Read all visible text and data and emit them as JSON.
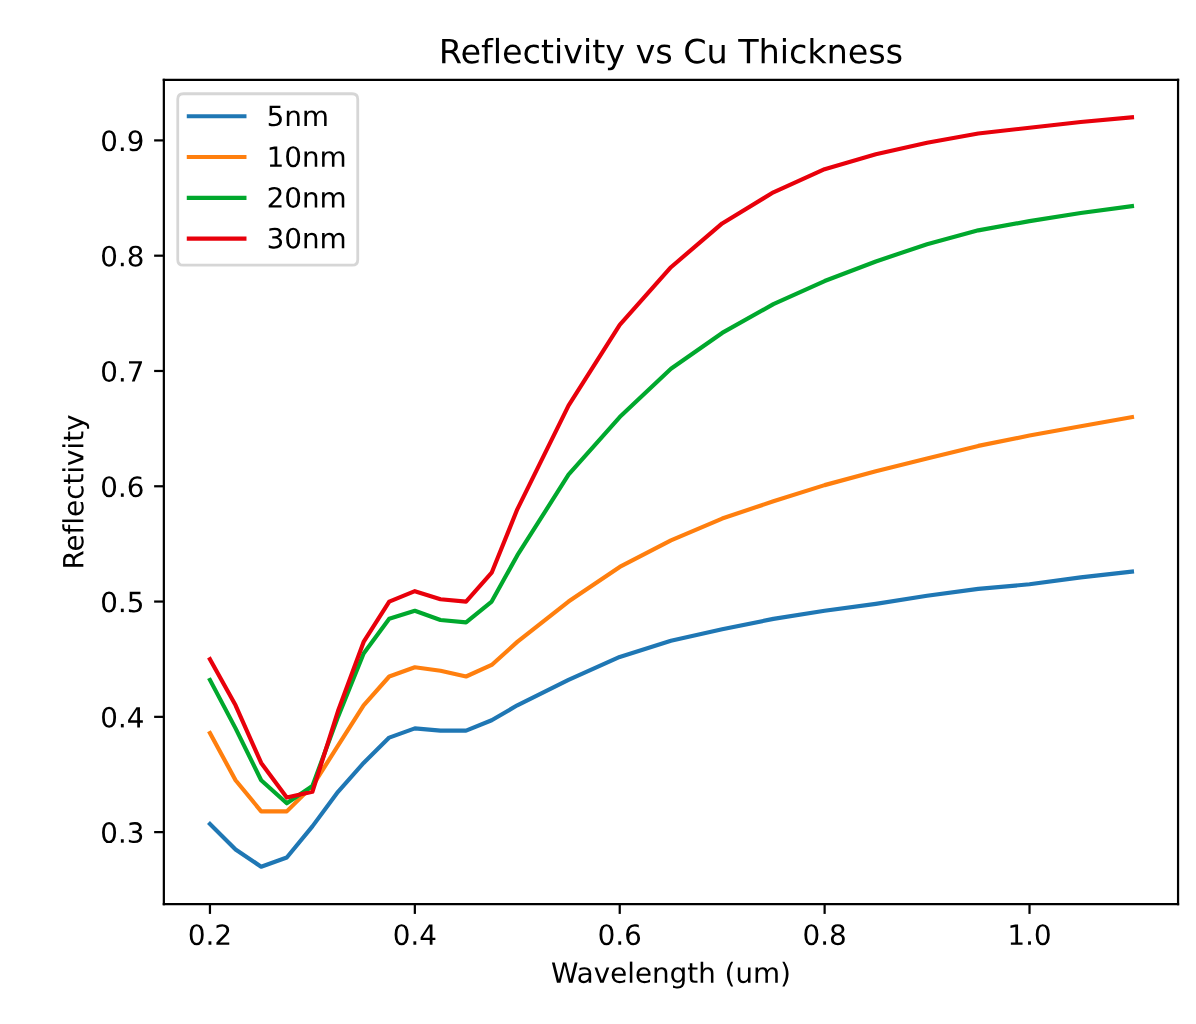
{
  "chart_data": {
    "type": "line",
    "title": "Reflectivity vs Cu Thickness",
    "xlabel": "Wavelength (um)",
    "ylabel": "Reflectivity",
    "x": [
      0.2,
      0.225,
      0.25,
      0.275,
      0.3,
      0.325,
      0.35,
      0.375,
      0.4,
      0.425,
      0.45,
      0.475,
      0.5,
      0.55,
      0.6,
      0.65,
      0.7,
      0.75,
      0.8,
      0.85,
      0.9,
      0.95,
      1.0,
      1.05,
      1.1
    ],
    "series": [
      {
        "name": "5nm",
        "color": "#1f77b4",
        "values": [
          0.307,
          0.285,
          0.27,
          0.278,
          0.305,
          0.335,
          0.36,
          0.382,
          0.39,
          0.388,
          0.388,
          0.397,
          0.41,
          0.432,
          0.452,
          0.466,
          0.476,
          0.485,
          0.492,
          0.498,
          0.505,
          0.511,
          0.515,
          0.521,
          0.526
        ]
      },
      {
        "name": "10nm",
        "color": "#ff7f0e",
        "values": [
          0.386,
          0.345,
          0.318,
          0.318,
          0.34,
          0.375,
          0.41,
          0.435,
          0.443,
          0.44,
          0.435,
          0.445,
          0.465,
          0.5,
          0.53,
          0.553,
          0.572,
          0.587,
          0.601,
          0.613,
          0.624,
          0.635,
          0.644,
          0.652,
          0.66
        ]
      },
      {
        "name": "20nm",
        "color": "#00a82d",
        "values": [
          0.432,
          0.39,
          0.345,
          0.325,
          0.34,
          0.4,
          0.455,
          0.485,
          0.492,
          0.484,
          0.482,
          0.5,
          0.54,
          0.61,
          0.66,
          0.702,
          0.733,
          0.758,
          0.778,
          0.795,
          0.81,
          0.822,
          0.83,
          0.837,
          0.843
        ]
      },
      {
        "name": "30nm",
        "color": "#e8000b",
        "values": [
          0.45,
          0.41,
          0.36,
          0.33,
          0.335,
          0.405,
          0.465,
          0.5,
          0.509,
          0.502,
          0.5,
          0.525,
          0.58,
          0.67,
          0.74,
          0.79,
          0.828,
          0.855,
          0.875,
          0.888,
          0.898,
          0.906,
          0.911,
          0.916,
          0.92
        ]
      }
    ],
    "xlim": [
      0.155,
      1.145
    ],
    "ylim": [
      0.2375,
      0.9525
    ],
    "xticks": [
      0.2,
      0.4,
      0.6,
      0.8,
      {
        "value": 1,
        "label": "1.0"
      }
    ],
    "yticks": [
      0.3,
      0.4,
      0.5,
      0.6,
      0.7,
      0.8,
      0.9
    ],
    "legend": "top left",
    "grid": false
  }
}
